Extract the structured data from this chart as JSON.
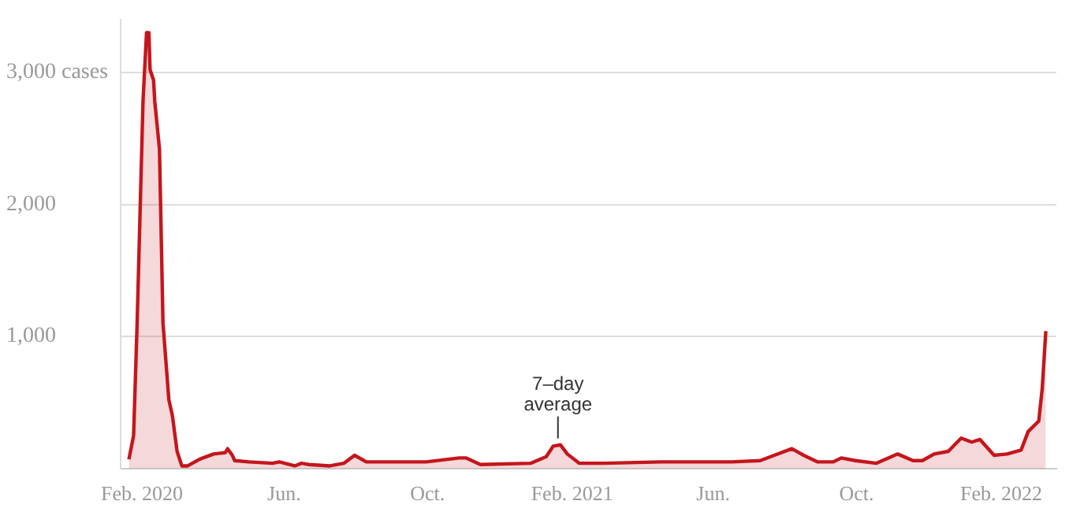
{
  "chart_data": {
    "type": "area",
    "x": [
      "2020-01-21",
      "2020-01-25",
      "2020-01-28",
      "2020-02-02",
      "2020-02-05",
      "2020-02-07",
      "2020-02-08",
      "2020-02-11",
      "2020-02-12",
      "2020-02-16",
      "2020-02-19",
      "2020-02-24",
      "2020-02-27",
      "2020-03-02",
      "2020-03-06",
      "2020-03-11",
      "2020-03-21",
      "2020-04-02",
      "2020-04-12",
      "2020-04-14",
      "2020-04-18",
      "2020-04-20",
      "2020-05-02",
      "2020-05-22",
      "2020-05-28",
      "2020-06-10",
      "2020-06-16",
      "2020-06-22",
      "2020-07-10",
      "2020-07-22",
      "2020-07-31",
      "2020-08-10",
      "2020-08-28",
      "2020-09-30",
      "2020-10-28",
      "2020-11-03",
      "2020-11-15",
      "2020-12-28",
      "2021-01-10",
      "2021-01-16",
      "2021-01-22",
      "2021-01-28",
      "2021-02-07",
      "2021-02-28",
      "2021-04-18",
      "2021-05-23",
      "2021-06-17",
      "2021-07-11",
      "2021-07-23",
      "2021-08-07",
      "2021-08-17",
      "2021-08-29",
      "2021-09-11",
      "2021-09-18",
      "2021-09-30",
      "2021-10-18",
      "2021-11-05",
      "2021-11-18",
      "2021-11-26",
      "2021-12-06",
      "2021-12-18",
      "2021-12-29",
      "2022-01-07",
      "2022-01-14",
      "2022-01-26",
      "2022-02-06",
      "2022-02-18",
      "2022-02-24",
      "2022-03-05",
      "2022-03-08",
      "2022-03-11"
    ],
    "series": [
      {
        "color": "#c4161c",
        "values": [
          70,
          250,
          1100,
          2780,
          3300,
          3300,
          3020,
          2940,
          2780,
          2420,
          1100,
          520,
          400,
          130,
          20,
          20,
          70,
          110,
          120,
          150,
          100,
          60,
          50,
          40,
          50,
          20,
          40,
          30,
          20,
          40,
          100,
          50,
          50,
          50,
          80,
          80,
          30,
          40,
          90,
          170,
          180,
          110,
          40,
          40,
          50,
          50,
          50,
          60,
          100,
          150,
          100,
          50,
          50,
          80,
          60,
          40,
          110,
          60,
          60,
          110,
          130,
          230,
          200,
          220,
          100,
          110,
          140,
          280,
          360,
          610,
          1040
        ]
      }
    ],
    "xlim": [
      "2020-01-14",
      "2022-03-20"
    ],
    "xticks": [
      {
        "value": "2020-02-01",
        "label": "Feb. 2020"
      },
      {
        "value": "2020-06-01",
        "label": "Jun."
      },
      {
        "value": "2020-10-01",
        "label": "Oct."
      },
      {
        "value": "2021-02-01",
        "label": "Feb. 2021"
      },
      {
        "value": "2021-06-01",
        "label": "Jun."
      },
      {
        "value": "2021-10-01",
        "label": "Oct."
      },
      {
        "value": "2022-02-01",
        "label": "Feb. 2022"
      }
    ],
    "ylim": [
      0,
      3400
    ],
    "yticks": [
      {
        "value": 1000,
        "label": "1,000"
      },
      {
        "value": 2000,
        "label": "2,000"
      },
      {
        "value": 3000,
        "label": "3,000 cases"
      }
    ],
    "grid": "y",
    "annotations": [
      {
        "text": "7–day average",
        "x": "2021-01-20",
        "y": 180
      }
    ]
  }
}
